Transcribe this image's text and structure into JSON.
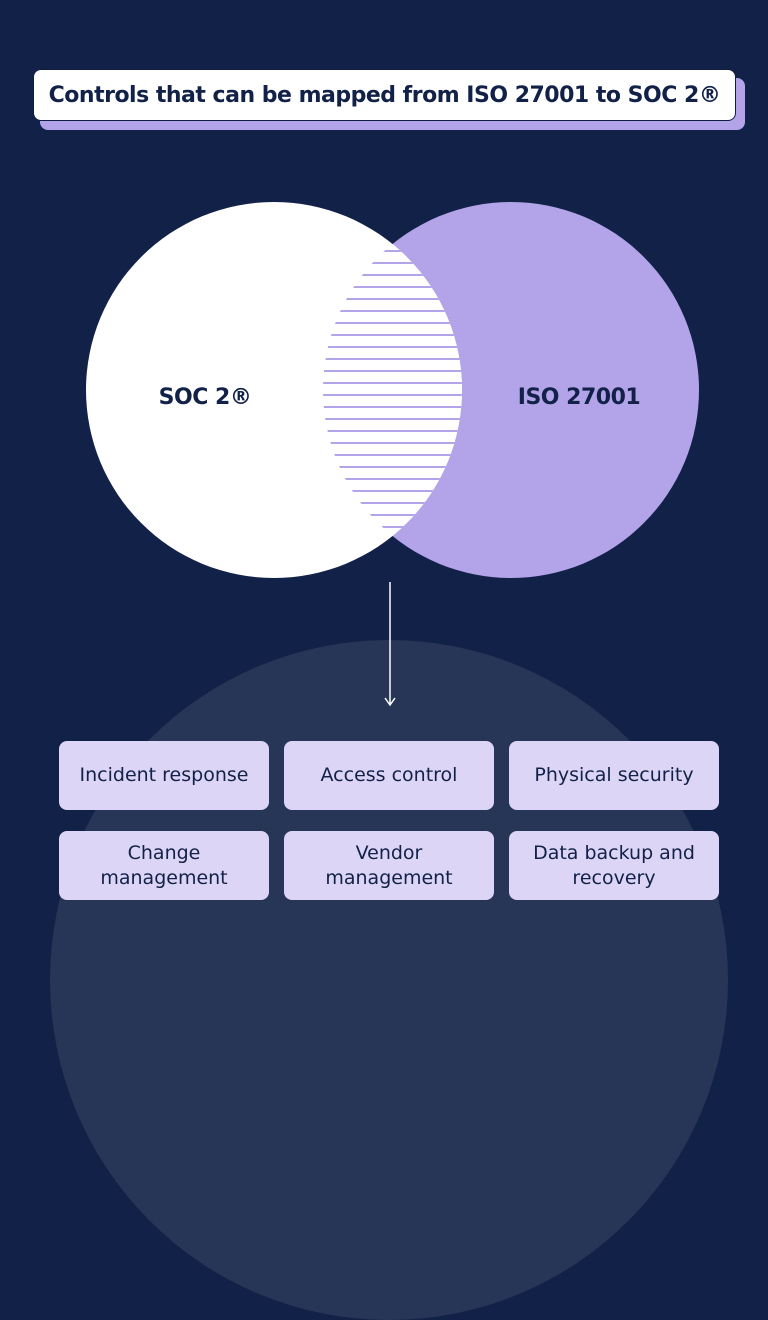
{
  "title": "Controls that can be mapped from ISO 27001 to SOC 2®",
  "venn": {
    "left_label": "SOC 2®",
    "right_label": "ISO 27001",
    "colors": {
      "left_fill": "#ffffff",
      "right_fill": "#b3a4ea",
      "overlap_stripe": "#ffffff",
      "background": "#122148",
      "text": "#122148"
    }
  },
  "controls": [
    {
      "label": "Incident response"
    },
    {
      "label": "Access control"
    },
    {
      "label": "Physical security"
    },
    {
      "label": "Change management"
    },
    {
      "label": "Vendor management"
    },
    {
      "label": "Data backup and recovery"
    }
  ],
  "colors": {
    "background": "#122148",
    "dome": "#273556",
    "card": "#ddd5f6",
    "title_shadow": "#b3a4ea",
    "arrow": "#ffffff"
  },
  "icons": {
    "connector": "arrow-down-icon"
  }
}
